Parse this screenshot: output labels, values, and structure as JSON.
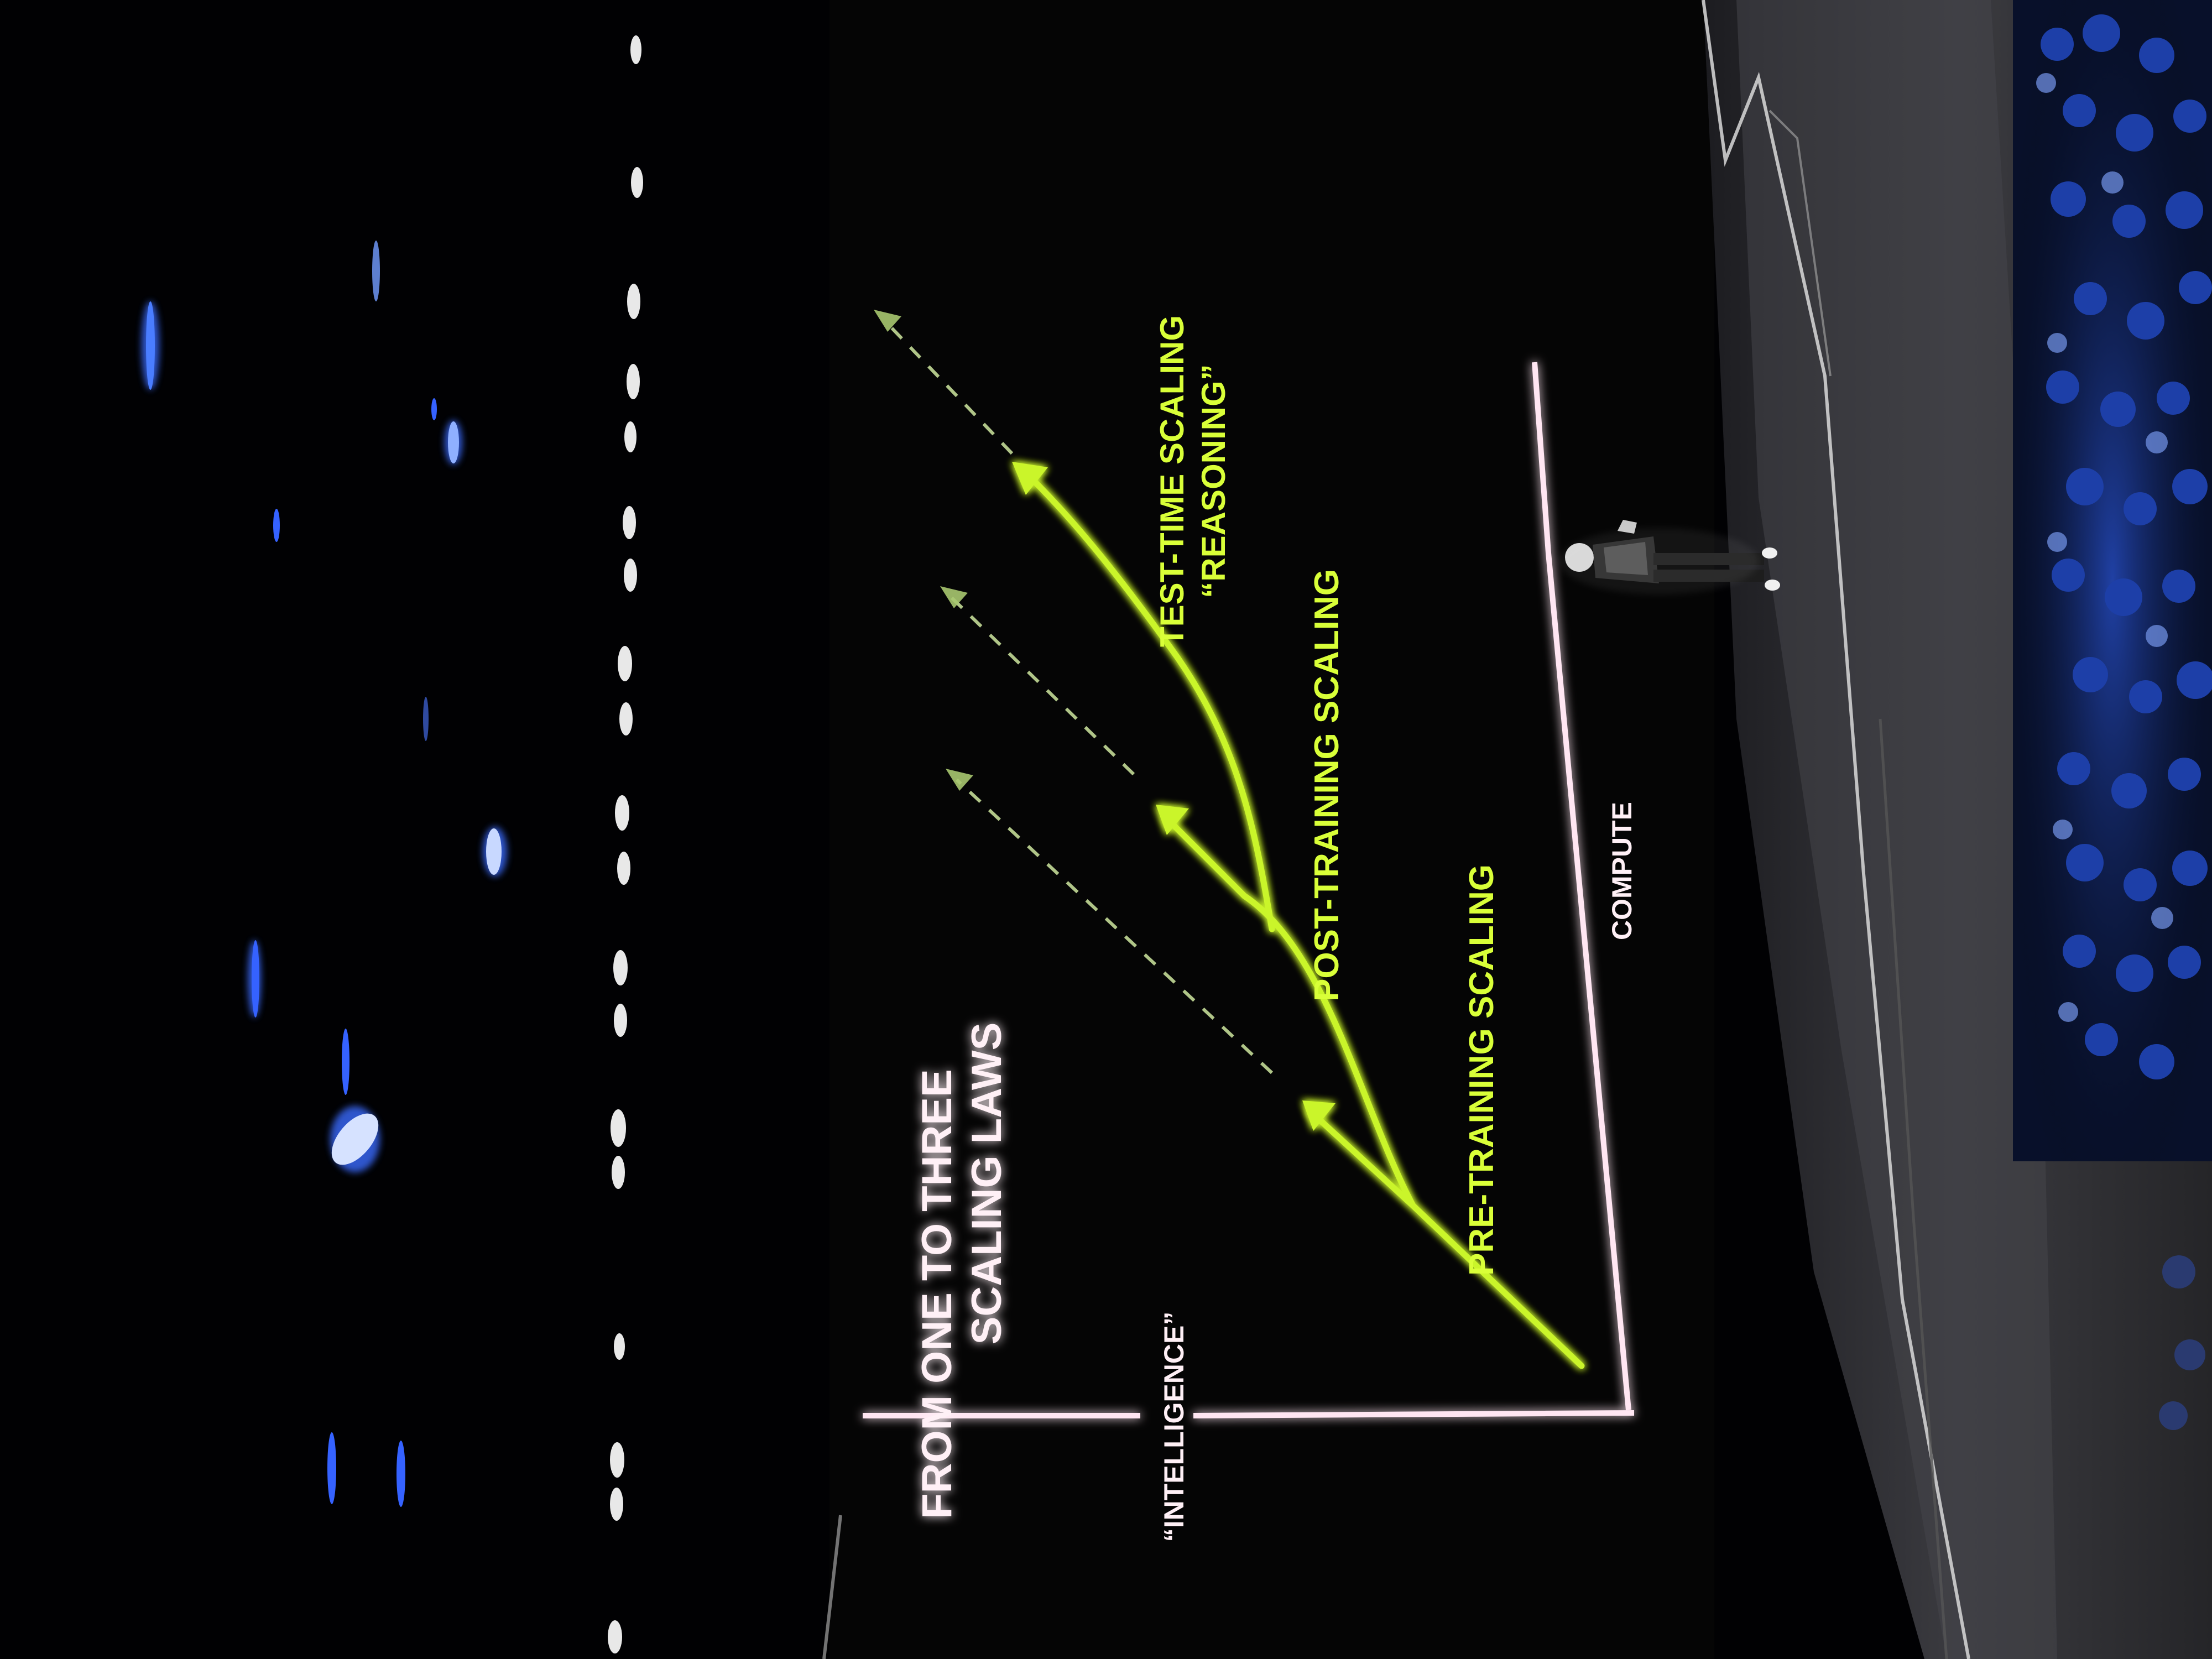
{
  "slide": {
    "title_line_1": "FROM ONE TO THREE",
    "title_line_2": "SCALING LAWS",
    "y_axis_label": "“INTELLIGENCE”",
    "x_axis_label": "COMPUTE",
    "curves": {
      "pretraining": "PRE-TRAINING SCALING",
      "posttraining": "POST-TRAINING SCALING",
      "testtime_line_1": "TEST-TIME SCALING",
      "testtime_line_2": "“REASONING”"
    }
  },
  "colors": {
    "background": "#000000",
    "stage_floor": "#3a3a3e",
    "neon_green": "#c8f22a",
    "axis_white": "#ffeaf4",
    "audience_blue": "#1f49c8"
  }
}
